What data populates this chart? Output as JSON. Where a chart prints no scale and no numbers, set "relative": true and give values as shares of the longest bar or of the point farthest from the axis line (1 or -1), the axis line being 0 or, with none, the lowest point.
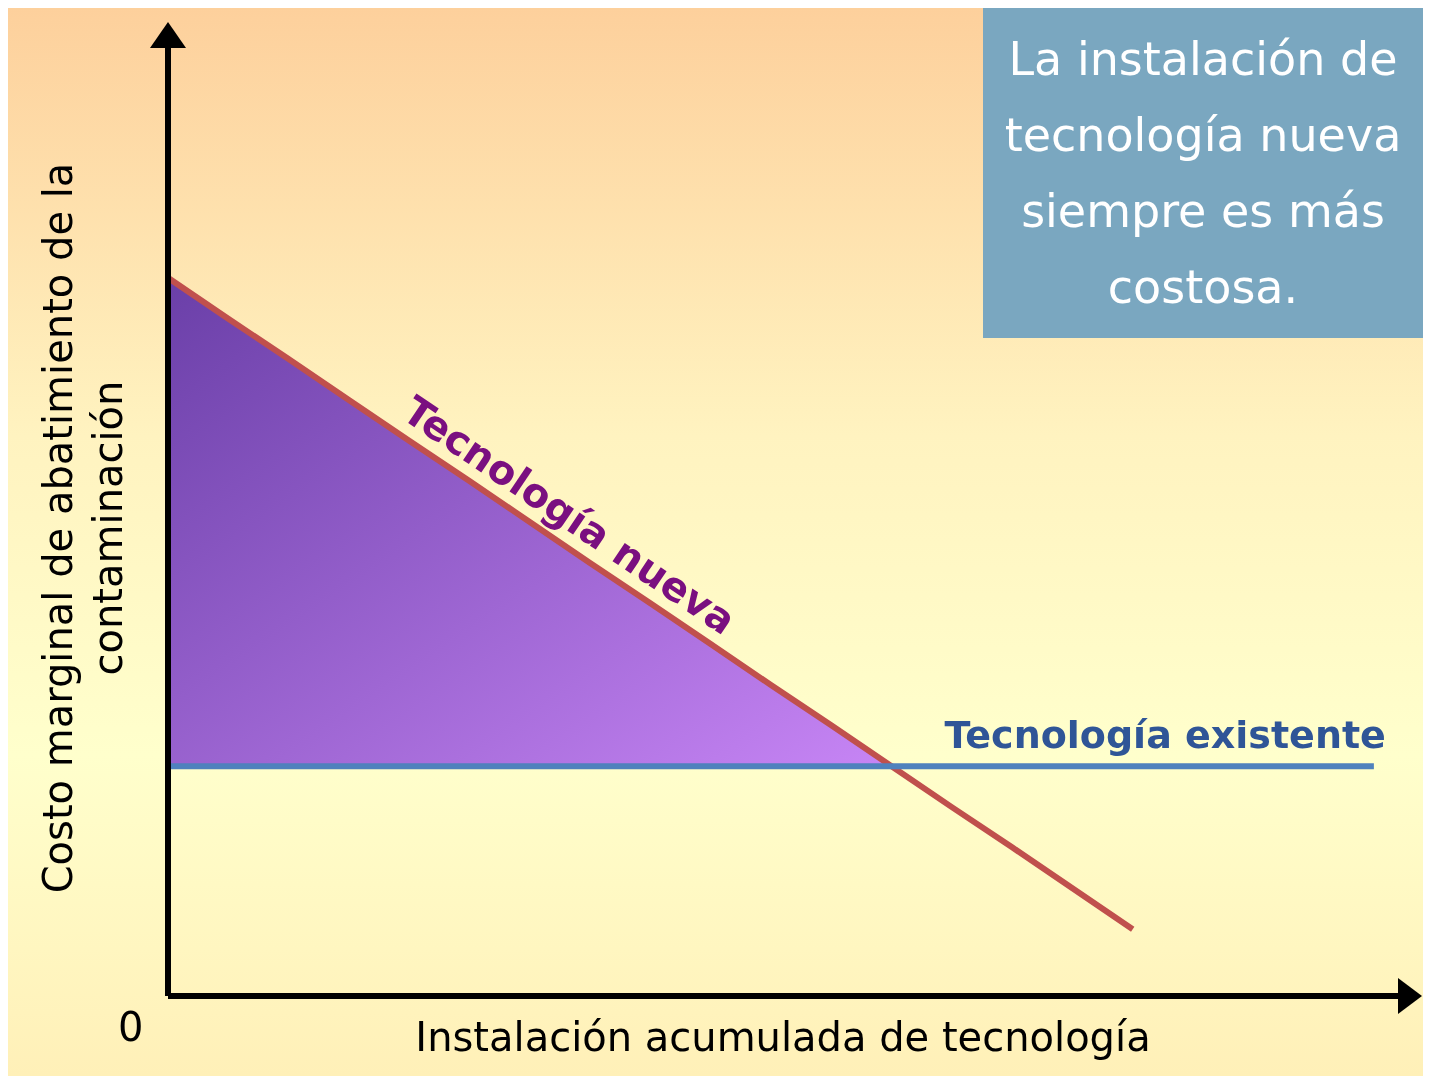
{
  "chart_data": {
    "type": "line",
    "relative": true,
    "xlabel": "Instalación acumulada de tecnología",
    "ylabel": "Costo marginal de abatimiento de la contaminación",
    "categories": [
      null,
      null,
      null,
      null,
      null,
      null,
      null,
      null,
      null,
      null,
      null,
      null,
      null,
      null,
      null,
      null,
      null,
      null,
      null,
      null,
      null
    ],
    "series": [
      {
        "name": "Tecnología nueva",
        "color": "#c0504d",
        "values": [
          1,
          0.943,
          0.887,
          0.83,
          0.773,
          0.717,
          0.66,
          0.603,
          0.547,
          0.49,
          0.433,
          0.377,
          0.32,
          0.263,
          0.207,
          0.15,
          0.093,
          null,
          null,
          null,
          null
        ],
        "lower": [
          0.32,
          0.32,
          0.32,
          0.32,
          0.32,
          0.32,
          0.32,
          0.32,
          0.32,
          0.32,
          0.32,
          0.32,
          0.32,
          null,
          null,
          null,
          null,
          null,
          null,
          null,
          null
        ],
        "upper": [
          1,
          0.943,
          0.887,
          0.83,
          0.773,
          0.717,
          0.66,
          0.603,
          0.547,
          0.49,
          0.433,
          0.377,
          0.32,
          null,
          null,
          null,
          null,
          null,
          null,
          null,
          null
        ]
      },
      {
        "name": "Tecnología existente",
        "color": "#4f81bd",
        "values": [
          0.32,
          0.32,
          0.32,
          0.32,
          0.32,
          0.32,
          0.32,
          0.32,
          0.32,
          0.32,
          0.32,
          0.32,
          0.32,
          0.32,
          0.32,
          0.32,
          0.32,
          0.32,
          0.32,
          0.32,
          0.32
        ]
      }
    ],
    "annotations": [
      "La instalación de tecnología nueva siempre es más costosa.",
      "0"
    ],
    "grid": false,
    "legend": false,
    "marker": "none",
    "line_style": "solid"
  }
}
